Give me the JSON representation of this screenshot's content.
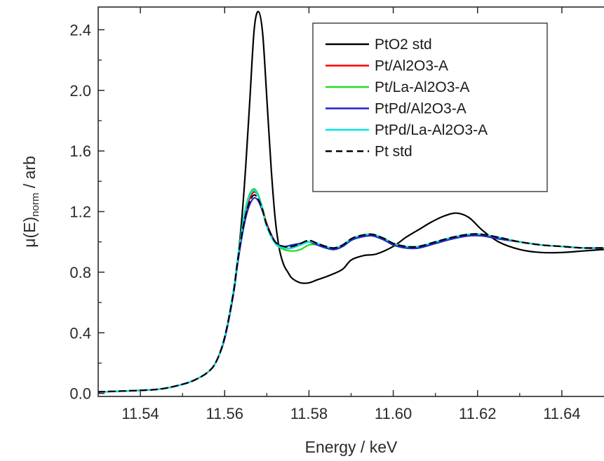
{
  "chart_data": {
    "type": "line",
    "title": "",
    "xlabel": "Energy / keV",
    "ylabel": {
      "pre": "μ(E)",
      "sub": "norm",
      "post": " / arb"
    },
    "xlim": [
      11.53,
      11.65
    ],
    "ylim": [
      -0.02,
      2.55
    ],
    "xticks": [
      11.54,
      11.56,
      11.58,
      11.6,
      11.62,
      11.64
    ],
    "xtick_labels": [
      "11.54",
      "11.56",
      "11.58",
      "11.60",
      "11.62",
      "11.64"
    ],
    "yticks": [
      0.0,
      0.4,
      0.8,
      1.2,
      1.6,
      2.0,
      2.4
    ],
    "ytick_labels": [
      "0.0",
      "0.4",
      "0.8",
      "1.2",
      "1.6",
      "2.0",
      "2.4"
    ],
    "grid": false,
    "legend": "top-right",
    "series": [
      {
        "name": "PtO2 std",
        "color": "#000000",
        "dash": "solid",
        "x": [
          11.53,
          11.54,
          11.545,
          11.55,
          11.553,
          11.556,
          11.558,
          11.56,
          11.562,
          11.563,
          11.564,
          11.565,
          11.566,
          11.567,
          11.568,
          11.569,
          11.57,
          11.571,
          11.572,
          11.573,
          11.574,
          11.575,
          11.576,
          11.578,
          11.58,
          11.582,
          11.585,
          11.588,
          11.59,
          11.593,
          11.596,
          11.6,
          11.603,
          11.606,
          11.609,
          11.612,
          11.615,
          11.618,
          11.621,
          11.625,
          11.63,
          11.635,
          11.64,
          11.645,
          11.65
        ],
        "y": [
          0.01,
          0.02,
          0.03,
          0.06,
          0.09,
          0.14,
          0.21,
          0.37,
          0.66,
          0.86,
          1.13,
          1.5,
          1.95,
          2.4,
          2.52,
          2.38,
          1.95,
          1.5,
          1.15,
          0.95,
          0.85,
          0.8,
          0.76,
          0.73,
          0.73,
          0.75,
          0.78,
          0.82,
          0.88,
          0.91,
          0.92,
          0.97,
          1.03,
          1.08,
          1.13,
          1.17,
          1.19,
          1.16,
          1.08,
          1.0,
          0.95,
          0.93,
          0.93,
          0.94,
          0.95
        ]
      },
      {
        "name": "Pt/Al2O3-A",
        "color": "#ff0000",
        "dash": "solid",
        "x": [
          11.53,
          11.54,
          11.545,
          11.55,
          11.553,
          11.556,
          11.558,
          11.56,
          11.562,
          11.563,
          11.564,
          11.565,
          11.566,
          11.567,
          11.568,
          11.569,
          11.57,
          11.572,
          11.574,
          11.576,
          11.578,
          11.58,
          11.582,
          11.584,
          11.586,
          11.588,
          11.59,
          11.592,
          11.595,
          11.598,
          11.6,
          11.603,
          11.606,
          11.61,
          11.614,
          11.618,
          11.621,
          11.625,
          11.63,
          11.635,
          11.64,
          11.645,
          11.65
        ],
        "y": [
          0.01,
          0.02,
          0.03,
          0.06,
          0.09,
          0.14,
          0.21,
          0.37,
          0.66,
          0.86,
          1.05,
          1.2,
          1.29,
          1.33,
          1.3,
          1.22,
          1.12,
          1.0,
          0.96,
          0.96,
          0.98,
          1.0,
          0.98,
          0.96,
          0.95,
          0.97,
          1.01,
          1.03,
          1.04,
          1.01,
          0.98,
          0.96,
          0.96,
          0.99,
          1.02,
          1.04,
          1.04,
          1.02,
          1.0,
          0.98,
          0.97,
          0.96,
          0.96
        ]
      },
      {
        "name": "Pt/La-Al2O3-A",
        "color": "#22dd22",
        "dash": "solid",
        "x": [
          11.53,
          11.54,
          11.545,
          11.55,
          11.553,
          11.556,
          11.558,
          11.56,
          11.562,
          11.563,
          11.564,
          11.565,
          11.566,
          11.567,
          11.568,
          11.569,
          11.57,
          11.572,
          11.574,
          11.576,
          11.578,
          11.58,
          11.582,
          11.584,
          11.586,
          11.588,
          11.59,
          11.592,
          11.595,
          11.598,
          11.6,
          11.603,
          11.606,
          11.61,
          11.614,
          11.618,
          11.621,
          11.625,
          11.63,
          11.635,
          11.64,
          11.645,
          11.65
        ],
        "y": [
          0.01,
          0.02,
          0.03,
          0.06,
          0.09,
          0.14,
          0.21,
          0.37,
          0.66,
          0.87,
          1.07,
          1.23,
          1.32,
          1.35,
          1.31,
          1.22,
          1.11,
          0.99,
          0.95,
          0.94,
          0.95,
          0.98,
          0.98,
          0.96,
          0.95,
          0.97,
          1.01,
          1.04,
          1.05,
          1.02,
          0.98,
          0.96,
          0.96,
          0.99,
          1.03,
          1.05,
          1.05,
          1.03,
          1.0,
          0.98,
          0.97,
          0.96,
          0.96
        ]
      },
      {
        "name": "PtPd/Al2O3-A",
        "color": "#2222cc",
        "dash": "solid",
        "x": [
          11.53,
          11.54,
          11.545,
          11.55,
          11.553,
          11.556,
          11.558,
          11.56,
          11.562,
          11.563,
          11.564,
          11.565,
          11.566,
          11.567,
          11.568,
          11.569,
          11.57,
          11.572,
          11.574,
          11.576,
          11.578,
          11.58,
          11.582,
          11.584,
          11.586,
          11.588,
          11.59,
          11.592,
          11.595,
          11.598,
          11.6,
          11.603,
          11.606,
          11.61,
          11.614,
          11.618,
          11.621,
          11.625,
          11.63,
          11.635,
          11.64,
          11.645,
          11.65
        ],
        "y": [
          0.01,
          0.02,
          0.03,
          0.06,
          0.09,
          0.14,
          0.21,
          0.36,
          0.64,
          0.84,
          1.02,
          1.16,
          1.25,
          1.29,
          1.27,
          1.2,
          1.11,
          1.0,
          0.97,
          0.98,
          0.99,
          1.0,
          0.98,
          0.96,
          0.95,
          0.97,
          1.01,
          1.03,
          1.04,
          1.01,
          0.98,
          0.96,
          0.96,
          0.99,
          1.02,
          1.04,
          1.04,
          1.02,
          1.0,
          0.98,
          0.97,
          0.96,
          0.96
        ]
      },
      {
        "name": "PtPd/La-Al2O3-A",
        "color": "#00e6e6",
        "dash": "solid",
        "x": [
          11.53,
          11.54,
          11.545,
          11.55,
          11.553,
          11.556,
          11.558,
          11.56,
          11.562,
          11.563,
          11.564,
          11.565,
          11.566,
          11.567,
          11.568,
          11.569,
          11.57,
          11.572,
          11.574,
          11.576,
          11.578,
          11.58,
          11.582,
          11.584,
          11.586,
          11.588,
          11.59,
          11.592,
          11.595,
          11.598,
          11.6,
          11.603,
          11.606,
          11.61,
          11.614,
          11.618,
          11.621,
          11.625,
          11.63,
          11.635,
          11.64,
          11.645,
          11.65
        ],
        "y": [
          0.01,
          0.02,
          0.03,
          0.06,
          0.09,
          0.14,
          0.21,
          0.37,
          0.66,
          0.87,
          1.06,
          1.22,
          1.31,
          1.34,
          1.3,
          1.21,
          1.1,
          0.99,
          0.96,
          0.96,
          0.98,
          1.0,
          0.99,
          0.97,
          0.96,
          0.98,
          1.02,
          1.04,
          1.05,
          1.02,
          0.99,
          0.97,
          0.97,
          1.0,
          1.03,
          1.05,
          1.05,
          1.03,
          1.0,
          0.98,
          0.97,
          0.96,
          0.96
        ]
      },
      {
        "name": "Pt std",
        "color": "#000000",
        "dash": "dashed",
        "x": [
          11.53,
          11.54,
          11.545,
          11.55,
          11.553,
          11.556,
          11.558,
          11.56,
          11.562,
          11.563,
          11.564,
          11.565,
          11.566,
          11.567,
          11.568,
          11.569,
          11.57,
          11.572,
          11.574,
          11.576,
          11.578,
          11.58,
          11.582,
          11.584,
          11.586,
          11.588,
          11.59,
          11.592,
          11.595,
          11.598,
          11.6,
          11.603,
          11.606,
          11.61,
          11.614,
          11.618,
          11.621,
          11.625,
          11.63,
          11.635,
          11.64,
          11.645,
          11.65
        ],
        "y": [
          0.01,
          0.02,
          0.03,
          0.06,
          0.09,
          0.14,
          0.21,
          0.37,
          0.65,
          0.86,
          1.04,
          1.18,
          1.27,
          1.31,
          1.28,
          1.21,
          1.11,
          1.0,
          0.97,
          0.97,
          0.99,
          1.01,
          0.99,
          0.97,
          0.96,
          0.98,
          1.02,
          1.04,
          1.05,
          1.02,
          0.99,
          0.97,
          0.97,
          1.0,
          1.03,
          1.05,
          1.05,
          1.03,
          1.0,
          0.98,
          0.97,
          0.96,
          0.96
        ]
      }
    ]
  }
}
